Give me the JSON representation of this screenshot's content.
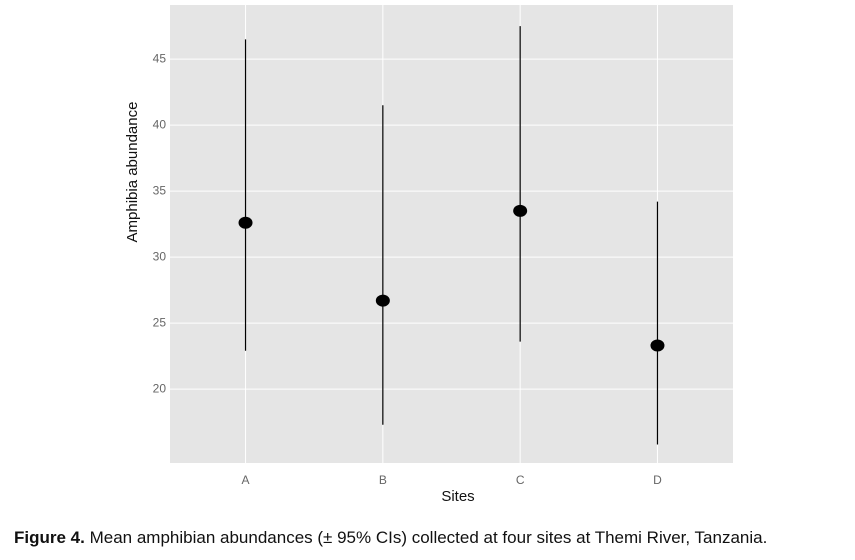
{
  "chart_data": {
    "type": "errorbar",
    "x_label": "Sites",
    "y_label": "Amphibia abundance",
    "categories": [
      "A",
      "B",
      "C",
      "D"
    ],
    "series": [
      {
        "name": "Mean",
        "color": "#000000",
        "values": [
          32.6,
          26.7,
          33.5,
          23.3
        ],
        "lower": [
          22.9,
          17.3,
          23.6,
          15.8
        ],
        "upper": [
          46.5,
          41.5,
          47.5,
          34.2
        ]
      }
    ],
    "ylim": [
      14.4,
      49.1
    ],
    "yticks": [
      20,
      25,
      30,
      35,
      40,
      45
    ],
    "grid": true
  },
  "caption": {
    "label": "Figure 4.",
    "text": "Mean amphibian abundances (± 95% CIs) collected at four sites at Themi River, Tanzania."
  }
}
